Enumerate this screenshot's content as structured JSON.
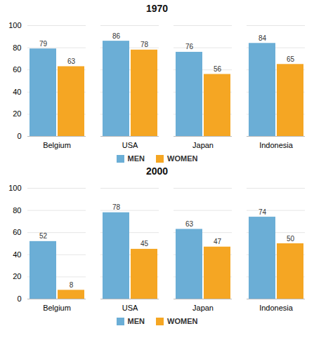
{
  "chart_data": [
    {
      "type": "bar",
      "title": "1970",
      "categories": [
        "Belgium",
        "USA",
        "Japan",
        "Indonesia"
      ],
      "series": [
        {
          "name": "MEN",
          "color": "#6BAED6",
          "values": [
            79,
            86,
            76,
            84
          ]
        },
        {
          "name": "WOMEN",
          "color": "#F5A623",
          "values": [
            63,
            78,
            56,
            65
          ]
        }
      ],
      "ylim": [
        0,
        100
      ],
      "yticks": [
        0,
        20,
        40,
        60,
        80,
        100
      ],
      "grid": true,
      "data_labels": true,
      "legend": "bottom"
    },
    {
      "type": "bar",
      "title": "2000",
      "categories": [
        "Belgium",
        "USA",
        "Japan",
        "Indonesia"
      ],
      "series": [
        {
          "name": "MEN",
          "color": "#6BAED6",
          "values": [
            52,
            78,
            63,
            74
          ]
        },
        {
          "name": "WOMEN",
          "color": "#F5A623",
          "values": [
            8,
            45,
            47,
            50
          ]
        }
      ],
      "ylim": [
        0,
        100
      ],
      "yticks": [
        0,
        20,
        40,
        60,
        80,
        100
      ],
      "grid": true,
      "data_labels": true,
      "legend": "bottom"
    }
  ]
}
